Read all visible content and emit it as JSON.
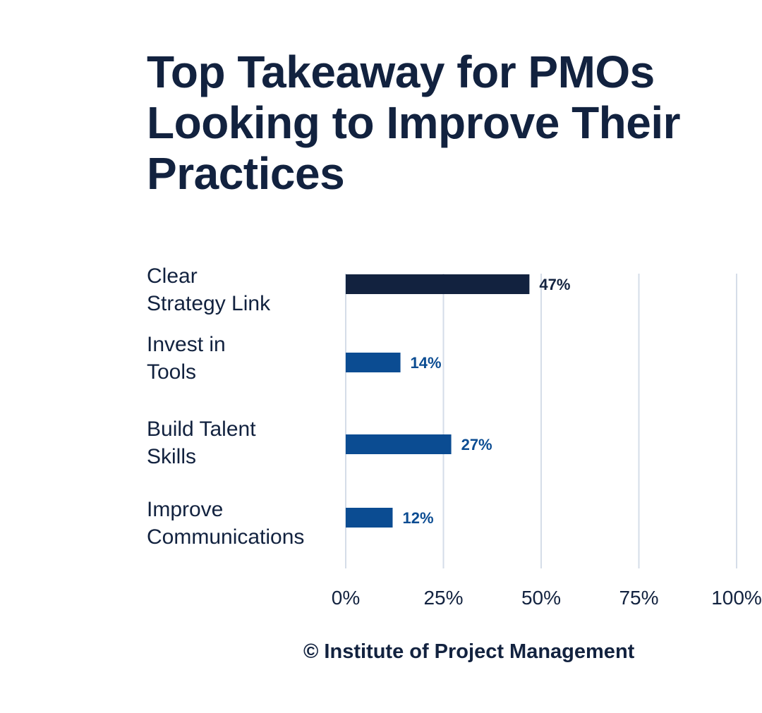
{
  "chart_data": {
    "type": "bar",
    "orientation": "horizontal",
    "title_lines": [
      "Top Takeaway for PMOs",
      "Looking to Improve Their",
      "Practices"
    ],
    "categories": [
      [
        "Clear",
        "Strategy Link"
      ],
      [
        "Invest in",
        "Tools"
      ],
      [
        "Build Talent",
        "Skills"
      ],
      [
        "Improve",
        "Communications"
      ]
    ],
    "values": [
      47,
      14,
      27,
      12
    ],
    "value_labels": [
      "47%",
      "14%",
      "27%",
      "12%"
    ],
    "xlim": [
      0,
      100
    ],
    "xticks": [
      0,
      25,
      50,
      75,
      100
    ],
    "xtick_labels": [
      "0%",
      "25%",
      "50%",
      "75%",
      "100%"
    ],
    "grid": "vertical",
    "colors": {
      "highlight": "#12223f",
      "bar": "#0b4c92",
      "grid": "#d5dde8",
      "text": "#12223f"
    },
    "highlight_index": 0
  },
  "source": "© Institute of Project Management"
}
